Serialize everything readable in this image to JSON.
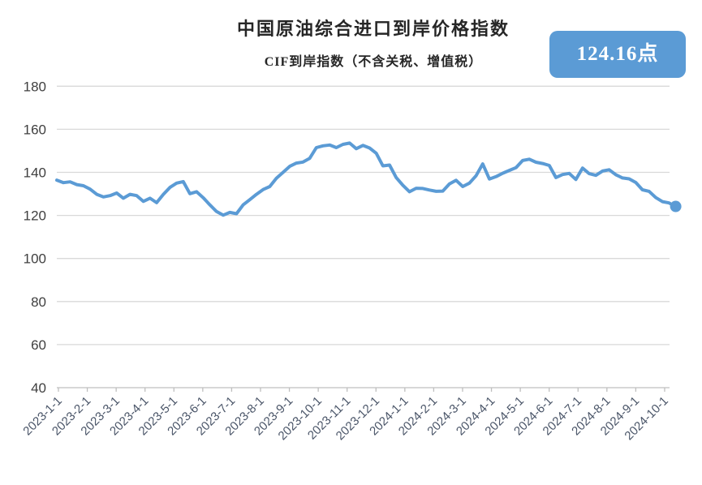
{
  "header": {
    "title": "中国原油综合进口到岸价格指数",
    "subtitle": "CIF到岸指数（不含关税、增值税）"
  },
  "badge": {
    "label": "124.16点",
    "background": "#5b9bd5",
    "text_color": "#ffffff"
  },
  "colors": {
    "line": "#5b9bd5",
    "end_dot": "#5b9bd5",
    "gridline": "#d9d9d9",
    "axis_line": "#bfbfbf",
    "y_label_text": "#3f3f3f",
    "x_label_text": "#4a5568"
  },
  "chart_data": {
    "type": "line",
    "title": "中国原油综合进口到岸价格指数",
    "subtitle": "CIF到岸指数（不含关税、增值税）",
    "ylim": [
      40,
      180
    ],
    "y_ticks": [
      180,
      160,
      140,
      120,
      100,
      80,
      60,
      40
    ],
    "grid": "horizontal-only",
    "legend": "none",
    "latest_value": 124.16,
    "latest_value_label": "124.16点",
    "end_marker": "circle",
    "x_tick_labels": [
      "2023-1-1",
      "2023-2-1",
      "2023-3-1",
      "2023-4-1",
      "2023-5-1",
      "2023-6-1",
      "2023-7-1",
      "2023-8-1",
      "2023-9-1",
      "2023-10-1",
      "2023-11-1",
      "2023-12-1",
      "2024-1-1",
      "2024-2-1",
      "2024-3-1",
      "2024-4-1",
      "2024-5-1",
      "2024-6-1",
      "2024-7-1",
      "2024-8-1",
      "2024-9-1",
      "2024-10-1"
    ],
    "series": [
      {
        "name": "CIF到岸指数",
        "color": "#5b9bd5",
        "x": [
          "2023-01-06",
          "2023-01-13",
          "2023-01-20",
          "2023-01-27",
          "2023-02-03",
          "2023-02-10",
          "2023-02-17",
          "2023-02-24",
          "2023-03-03",
          "2023-03-10",
          "2023-03-17",
          "2023-03-24",
          "2023-03-31",
          "2023-04-07",
          "2023-04-14",
          "2023-04-21",
          "2023-04-28",
          "2023-05-05",
          "2023-05-12",
          "2023-05-19",
          "2023-05-26",
          "2023-06-02",
          "2023-06-09",
          "2023-06-16",
          "2023-06-23",
          "2023-06-30",
          "2023-07-07",
          "2023-07-14",
          "2023-07-21",
          "2023-07-28",
          "2023-08-04",
          "2023-08-11",
          "2023-08-18",
          "2023-08-25",
          "2023-09-01",
          "2023-09-08",
          "2023-09-15",
          "2023-09-22",
          "2023-09-29",
          "2023-10-06",
          "2023-10-13",
          "2023-10-20",
          "2023-10-27",
          "2023-11-03",
          "2023-11-10",
          "2023-11-17",
          "2023-11-24",
          "2023-12-01",
          "2023-12-08",
          "2023-12-15",
          "2023-12-22",
          "2023-12-29",
          "2024-01-05",
          "2024-01-12",
          "2024-01-19",
          "2024-01-26",
          "2024-02-02",
          "2024-02-09",
          "2024-02-16",
          "2024-02-23",
          "2024-03-01",
          "2024-03-08",
          "2024-03-15",
          "2024-03-22",
          "2024-03-29",
          "2024-04-05",
          "2024-04-12",
          "2024-04-19",
          "2024-04-26",
          "2024-05-03",
          "2024-05-10",
          "2024-05-17",
          "2024-05-24",
          "2024-05-31",
          "2024-06-07",
          "2024-06-14",
          "2024-06-21",
          "2024-06-28",
          "2024-07-05",
          "2024-07-12",
          "2024-07-19",
          "2024-07-26",
          "2024-08-02",
          "2024-08-09",
          "2024-08-16",
          "2024-08-23",
          "2024-08-30",
          "2024-09-06",
          "2024-09-13",
          "2024-09-20",
          "2024-09-27",
          "2024-10-04",
          "2024-10-11",
          "2024-10-18"
        ],
        "values": [
          136.4,
          135.2,
          135.6,
          134.3,
          133.8,
          132.2,
          129.8,
          128.6,
          129.2,
          130.4,
          128.0,
          129.8,
          129.2,
          126.5,
          128.0,
          125.9,
          129.7,
          133.0,
          135.0,
          135.7,
          130.1,
          131.0,
          128.2,
          124.9,
          121.8,
          120.1,
          121.4,
          120.8,
          124.9,
          127.3,
          129.8,
          132.0,
          133.4,
          137.3,
          140.0,
          142.8,
          144.3,
          144.8,
          146.5,
          151.5,
          152.3,
          152.7,
          151.5,
          153.0,
          153.6,
          151.0,
          152.5,
          151.3,
          148.9,
          143.0,
          143.4,
          137.6,
          134.0,
          131.0,
          132.6,
          132.5,
          131.8,
          131.2,
          131.3,
          134.6,
          136.3,
          133.4,
          135.0,
          138.4,
          143.9,
          136.9,
          138.0,
          139.6,
          140.9,
          142.2,
          145.5,
          146.1,
          144.7,
          144.1,
          143.2,
          137.6,
          139.0,
          139.5,
          136.7,
          142.0,
          139.4,
          138.6,
          140.6,
          141.2,
          138.9,
          137.4,
          137.0,
          135.3,
          131.9,
          131.2,
          128.3,
          126.4,
          125.8,
          124.16
        ]
      }
    ]
  }
}
